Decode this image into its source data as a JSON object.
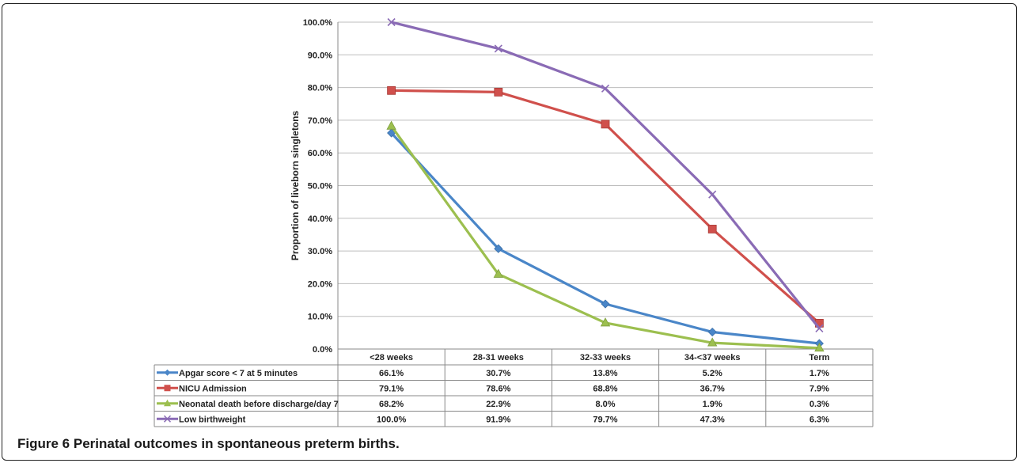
{
  "figure": {
    "label": "Figure 6",
    "caption": "Perinatal outcomes in spontaneous preterm births."
  },
  "chart_data": {
    "type": "line",
    "ylabel": "Proportion of liveborn singletons",
    "ylim": [
      0,
      100
    ],
    "y_ticks": [
      "0.0%",
      "10.0%",
      "20.0%",
      "30.0%",
      "40.0%",
      "50.0%",
      "60.0%",
      "70.0%",
      "80.0%",
      "90.0%",
      "100.0%"
    ],
    "categories": [
      "<28 weeks",
      "28-31 weeks",
      "32-33 weeks",
      "34-<37 weeks",
      "Term"
    ],
    "grid": true,
    "legend": "data-table-below",
    "series": [
      {
        "name": "Apgar score < 7 at 5 minutes",
        "values": [
          66.1,
          30.7,
          13.8,
          5.2,
          1.7
        ],
        "labels": [
          "66.1%",
          "30.7%",
          "13.8%",
          "5.2%",
          "1.7%"
        ],
        "color": "#4a86c8",
        "marker": "diamond"
      },
      {
        "name": "NICU Admission",
        "values": [
          79.1,
          78.6,
          68.8,
          36.7,
          7.9
        ],
        "labels": [
          "79.1%",
          "78.6%",
          "68.8%",
          "36.7%",
          "7.9%"
        ],
        "color": "#d0504c",
        "marker": "square"
      },
      {
        "name": "Neonatal death before discharge/day 7",
        "values": [
          68.2,
          22.9,
          8.0,
          1.9,
          0.3
        ],
        "labels": [
          "68.2%",
          "22.9%",
          "8.0%",
          "1.9%",
          "0.3%"
        ],
        "color": "#9cbf4f",
        "marker": "triangle"
      },
      {
        "name": "Low birthweight",
        "values": [
          100.0,
          91.9,
          79.7,
          47.3,
          6.3
        ],
        "labels": [
          "100.0%",
          "91.9%",
          "79.7%",
          "47.3%",
          "6.3%"
        ],
        "color": "#8a6bb5",
        "marker": "x"
      }
    ]
  }
}
